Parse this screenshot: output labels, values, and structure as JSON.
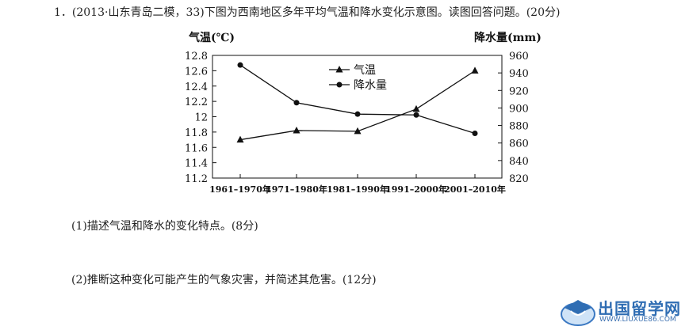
{
  "question": {
    "header": "1．(2013·山东青岛二模，33)下图为西南地区多年平均气温和降水变化示意图。读图回答问题。(20分)",
    "sub1": "(1)描述气温和降水的变化特点。(8分)",
    "sub2": "(2)推断这种变化可能产生的气象灾害，并简述其危害。(12分)"
  },
  "chart_data": {
    "type": "line",
    "categories": [
      "1961–1970年",
      "1971–1980年",
      "1981–1990年",
      "1991–2000年",
      "2001–2010年"
    ],
    "left_axis": {
      "label": "气温(℃)",
      "range": [
        11.2,
        12.8
      ],
      "ticks": [
        "12.8",
        "12.6",
        "12.4",
        "12.2",
        "12",
        "11.8",
        "11.6",
        "11.4",
        "11.2"
      ]
    },
    "right_axis": {
      "label": "降水量(mm)",
      "range": [
        820,
        960
      ],
      "ticks": [
        "960",
        "940",
        "920",
        "900",
        "880",
        "860",
        "840",
        "820"
      ]
    },
    "series": [
      {
        "name": "气温",
        "axis": "left",
        "marker": "triangle",
        "values": [
          11.7,
          11.82,
          11.81,
          12.1,
          12.6
        ]
      },
      {
        "name": "降水量",
        "axis": "right",
        "marker": "circle",
        "values": [
          949,
          906,
          893,
          892,
          871
        ]
      }
    ],
    "legend": {
      "position": "top-center"
    },
    "grid": false
  },
  "watermark": {
    "text": "出国留学网",
    "url": "WWW.LIUXUE86.COM"
  }
}
